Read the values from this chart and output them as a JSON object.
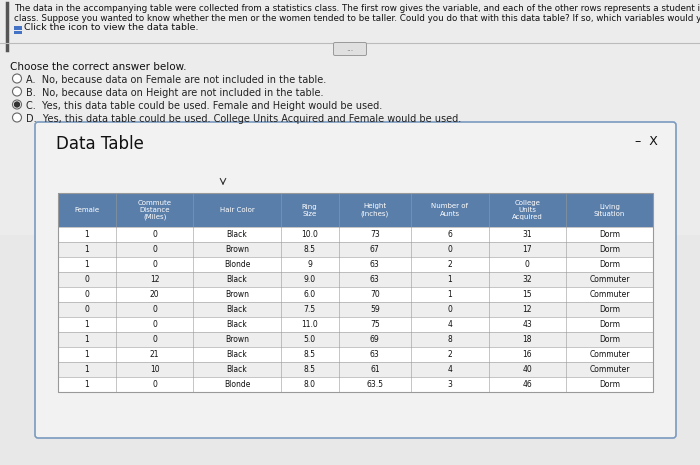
{
  "title_line1": "The data in the accompanying table were collected from a statistics class. The first row gives the variable, and each of the other rows represents a student in the",
  "title_line2": "class. Suppose you wanted to know whether the men or the women tended to be taller. Could you do that with this data table? If so, which variables would you use?",
  "click_text": "Click the icon to view the data table.",
  "choose_text": "Choose the correct answer below.",
  "options": [
    "A.  No, because data on Female are not included in the table.",
    "B.  No, because data on Height are not included in the table.",
    "C.  Yes, this data table could be used. Female and Height would be used.",
    "D.  Yes, this data table could be used. College Units Acquired and Female would be used."
  ],
  "selected_option": "C",
  "data_table_title": "Data Table",
  "col_headers": [
    "Female",
    "Commute\nDistance\n(Miles)",
    "Hair Color",
    "Ring\nSize",
    "Height\n(Inches)",
    "Number of\nAunts",
    "College\nUnits\nAcquired",
    "Living\nSituation"
  ],
  "table_data": [
    [
      "1",
      "0",
      "Black",
      "10.0",
      "73",
      "6",
      "31",
      "Dorm"
    ],
    [
      "1",
      "0",
      "Brown",
      "8.5",
      "67",
      "0",
      "17",
      "Dorm"
    ],
    [
      "1",
      "0",
      "Blonde",
      "9",
      "63",
      "2",
      "0",
      "Dorm"
    ],
    [
      "0",
      "12",
      "Black",
      "9.0",
      "63",
      "1",
      "32",
      "Commuter"
    ],
    [
      "0",
      "20",
      "Brown",
      "6.0",
      "70",
      "1",
      "15",
      "Commuter"
    ],
    [
      "0",
      "0",
      "Black",
      "7.5",
      "59",
      "0",
      "12",
      "Dorm"
    ],
    [
      "1",
      "0",
      "Black",
      "11.0",
      "75",
      "4",
      "43",
      "Dorm"
    ],
    [
      "1",
      "0",
      "Brown",
      "5.0",
      "69",
      "8",
      "18",
      "Dorm"
    ],
    [
      "1",
      "21",
      "Black",
      "8.5",
      "63",
      "2",
      "16",
      "Commuter"
    ],
    [
      "1",
      "10",
      "Black",
      "8.5",
      "61",
      "4",
      "40",
      "Commuter"
    ],
    [
      "1",
      "0",
      "Blonde",
      "8.0",
      "63.5",
      "3",
      "46",
      "Dorm"
    ]
  ],
  "header_bg": "#5a7eaa",
  "header_fg": "#ffffff",
  "row_bg_even": "#ffffff",
  "row_bg_odd": "#eeeeee",
  "table_border": "#999999",
  "outer_bg": "#d8d8d8",
  "panel_bg": "#f0f0f0",
  "panel_border": "#888888",
  "left_bar_color": "#555555",
  "text_color": "#111111",
  "option_text_color": "#222222"
}
